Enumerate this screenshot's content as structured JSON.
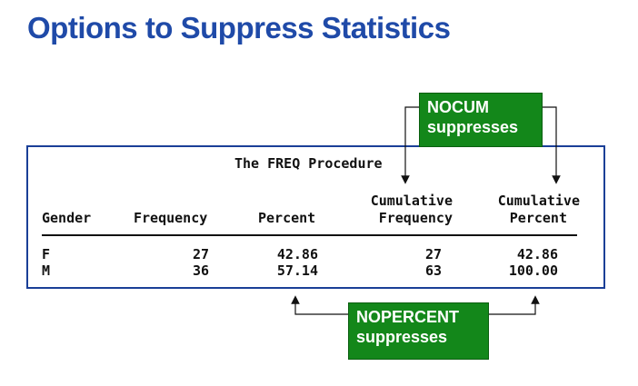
{
  "page_title": "Options to Suppress Statistics",
  "procedure_title": "The FREQ Procedure",
  "columns": {
    "gender": "Gender",
    "frequency": "Frequency",
    "percent": "Percent",
    "cum_freq_line1": "Cumulative",
    "cum_freq_line2": "Frequency",
    "cum_pct_line1": "Cumulative",
    "cum_pct_line2": "Percent"
  },
  "rows": [
    {
      "gender": "F",
      "frequency": "27",
      "percent": "42.86",
      "cum_freq": "27",
      "cum_pct": "42.86"
    },
    {
      "gender": "M",
      "frequency": "36",
      "percent": "57.14",
      "cum_freq": "63",
      "cum_pct": "100.00"
    }
  ],
  "callouts": {
    "nocum_line1": "NOCUM",
    "nocum_line2": "suppresses",
    "nopercent_line1": "NOPERCENT",
    "nopercent_line2": "suppresses"
  },
  "colors": {
    "title": "#1f4aa8",
    "box_border": "#1a3f97",
    "callout_bg": "#13871a"
  }
}
